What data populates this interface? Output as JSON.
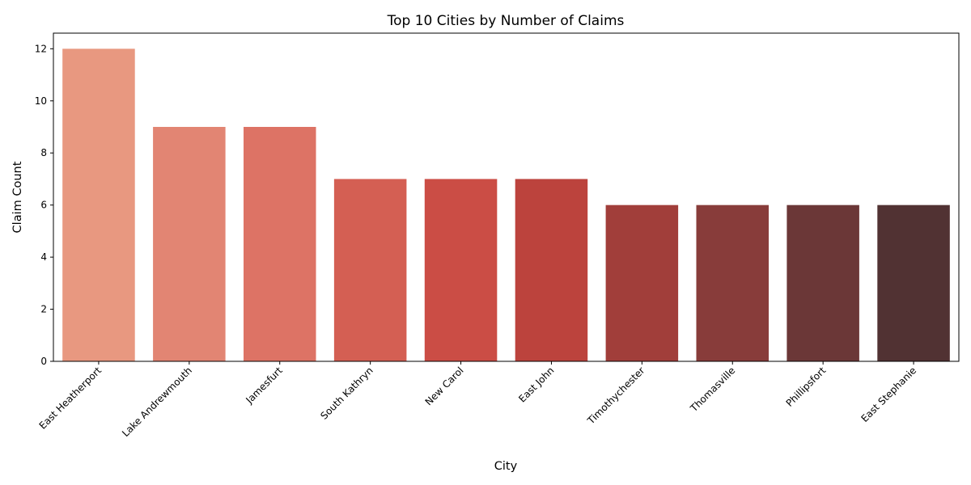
{
  "chart_data": {
    "type": "bar",
    "title": "Top 10 Cities by Number of Claims",
    "xlabel": "City",
    "ylabel": "Claim Count",
    "categories": [
      "East Heatherport",
      "Lake Andrewmouth",
      "Jamesfurt",
      "South Kathryn",
      "New Carol",
      "East John",
      "Timothychester",
      "Thomasville",
      "Phillipsfort",
      "East Stephanie"
    ],
    "values": [
      12,
      9,
      9,
      7,
      7,
      7,
      6,
      6,
      6,
      6
    ],
    "colors": [
      "#e89880",
      "#e28573",
      "#dd7365",
      "#d45f53",
      "#cb4d45",
      "#bc433d",
      "#a13e3a",
      "#883c3a",
      "#6b3737",
      "#513233"
    ],
    "ylim": [
      0,
      12.6
    ],
    "yticks": [
      0,
      2,
      4,
      6,
      8,
      10,
      12
    ],
    "grid": false,
    "legend": "none"
  }
}
